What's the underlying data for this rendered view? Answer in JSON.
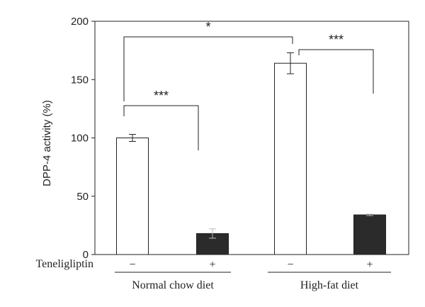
{
  "chart_data": {
    "type": "bar",
    "ylabel": "DPP-4 activity (%)",
    "ylim": [
      0,
      200
    ],
    "yticks": [
      "0",
      "50",
      "100",
      "150",
      "200"
    ],
    "row_label": "Teneligliptin",
    "groups": [
      "Normal chow diet",
      "High-fat diet"
    ],
    "bars": [
      {
        "group": "Normal chow diet",
        "treatment": "−",
        "value": 100,
        "error": 3,
        "color": "#ffffff"
      },
      {
        "group": "Normal chow diet",
        "treatment": "+",
        "value": 18,
        "error": 4,
        "color": "#2b2b2b"
      },
      {
        "group": "High-fat diet",
        "treatment": "−",
        "value": 164,
        "error": 9,
        "color": "#ffffff"
      },
      {
        "group": "High-fat diet",
        "treatment": "+",
        "value": 34,
        "error": 0.6,
        "color": "#2b2b2b"
      }
    ],
    "significance": [
      {
        "from": 0,
        "to": 1,
        "label": "***"
      },
      {
        "from": 0,
        "to": 2,
        "label": "*"
      },
      {
        "from": 2,
        "to": 3,
        "label": "***"
      }
    ],
    "grid": false
  }
}
